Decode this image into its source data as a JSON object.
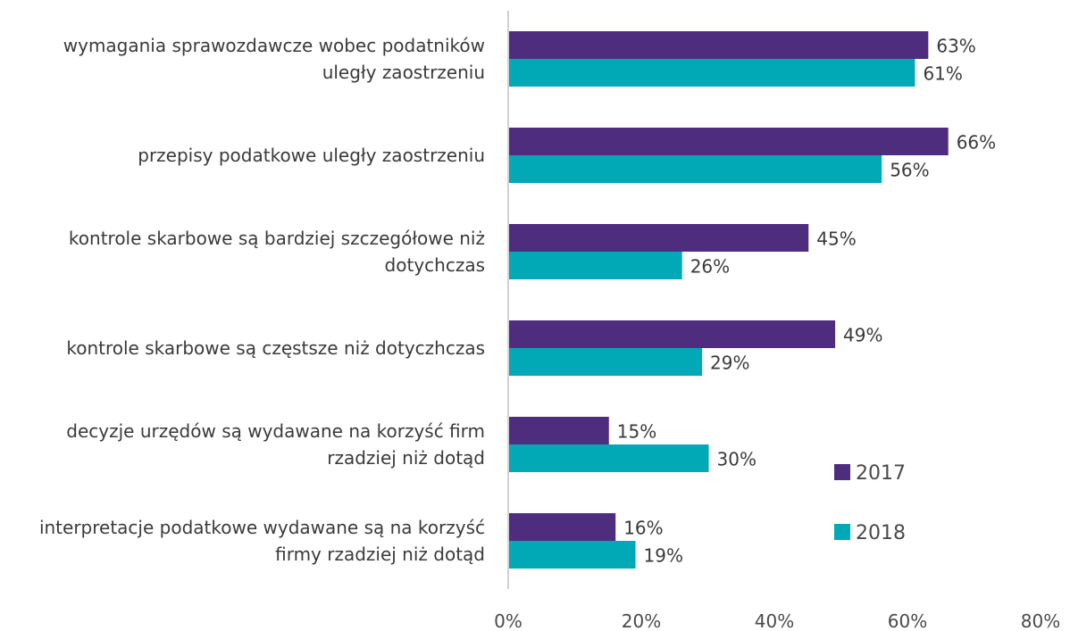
{
  "chart_data": {
    "type": "bar",
    "orientation": "horizontal",
    "categories": [
      [
        "wymagania sprawozdawcze wobec podatników",
        "uległy zaostrzeniu"
      ],
      [
        "przepisy podatkowe uległy zaostrzeniu"
      ],
      [
        "kontrole skarbowe są bardziej szczegółowe niż",
        "dotychczas"
      ],
      [
        "kontrole skarbowe są częstsze niż dotyczhczas"
      ],
      [
        "decyzje urzędów są wydawane na korzyść firm",
        "rzadziej niż dotąd"
      ],
      [
        "interpretacje podatkowe wydawane są na korzyść",
        "firmy rzadziej niż dotąd"
      ]
    ],
    "series": [
      {
        "name": "2017",
        "color": "#4e2d7f",
        "values": [
          63,
          66,
          45,
          49,
          15,
          16
        ],
        "labels": [
          "63%",
          "66%",
          "45%",
          "49%",
          "15%",
          "16%"
        ]
      },
      {
        "name": "2018",
        "color": "#00a9b5",
        "values": [
          61,
          56,
          26,
          29,
          30,
          19
        ],
        "labels": [
          "61%",
          "56%",
          "26%",
          "29%",
          "30%",
          "19%"
        ]
      }
    ],
    "xlim": [
      0,
      80
    ],
    "x_ticks": [
      0,
      20,
      40,
      60,
      80
    ],
    "x_tick_labels": [
      "0%",
      "20%",
      "40%",
      "60%",
      "80%"
    ],
    "grid": false,
    "legend_position": "bottom-right",
    "axis_color": "#d0d0d0"
  }
}
